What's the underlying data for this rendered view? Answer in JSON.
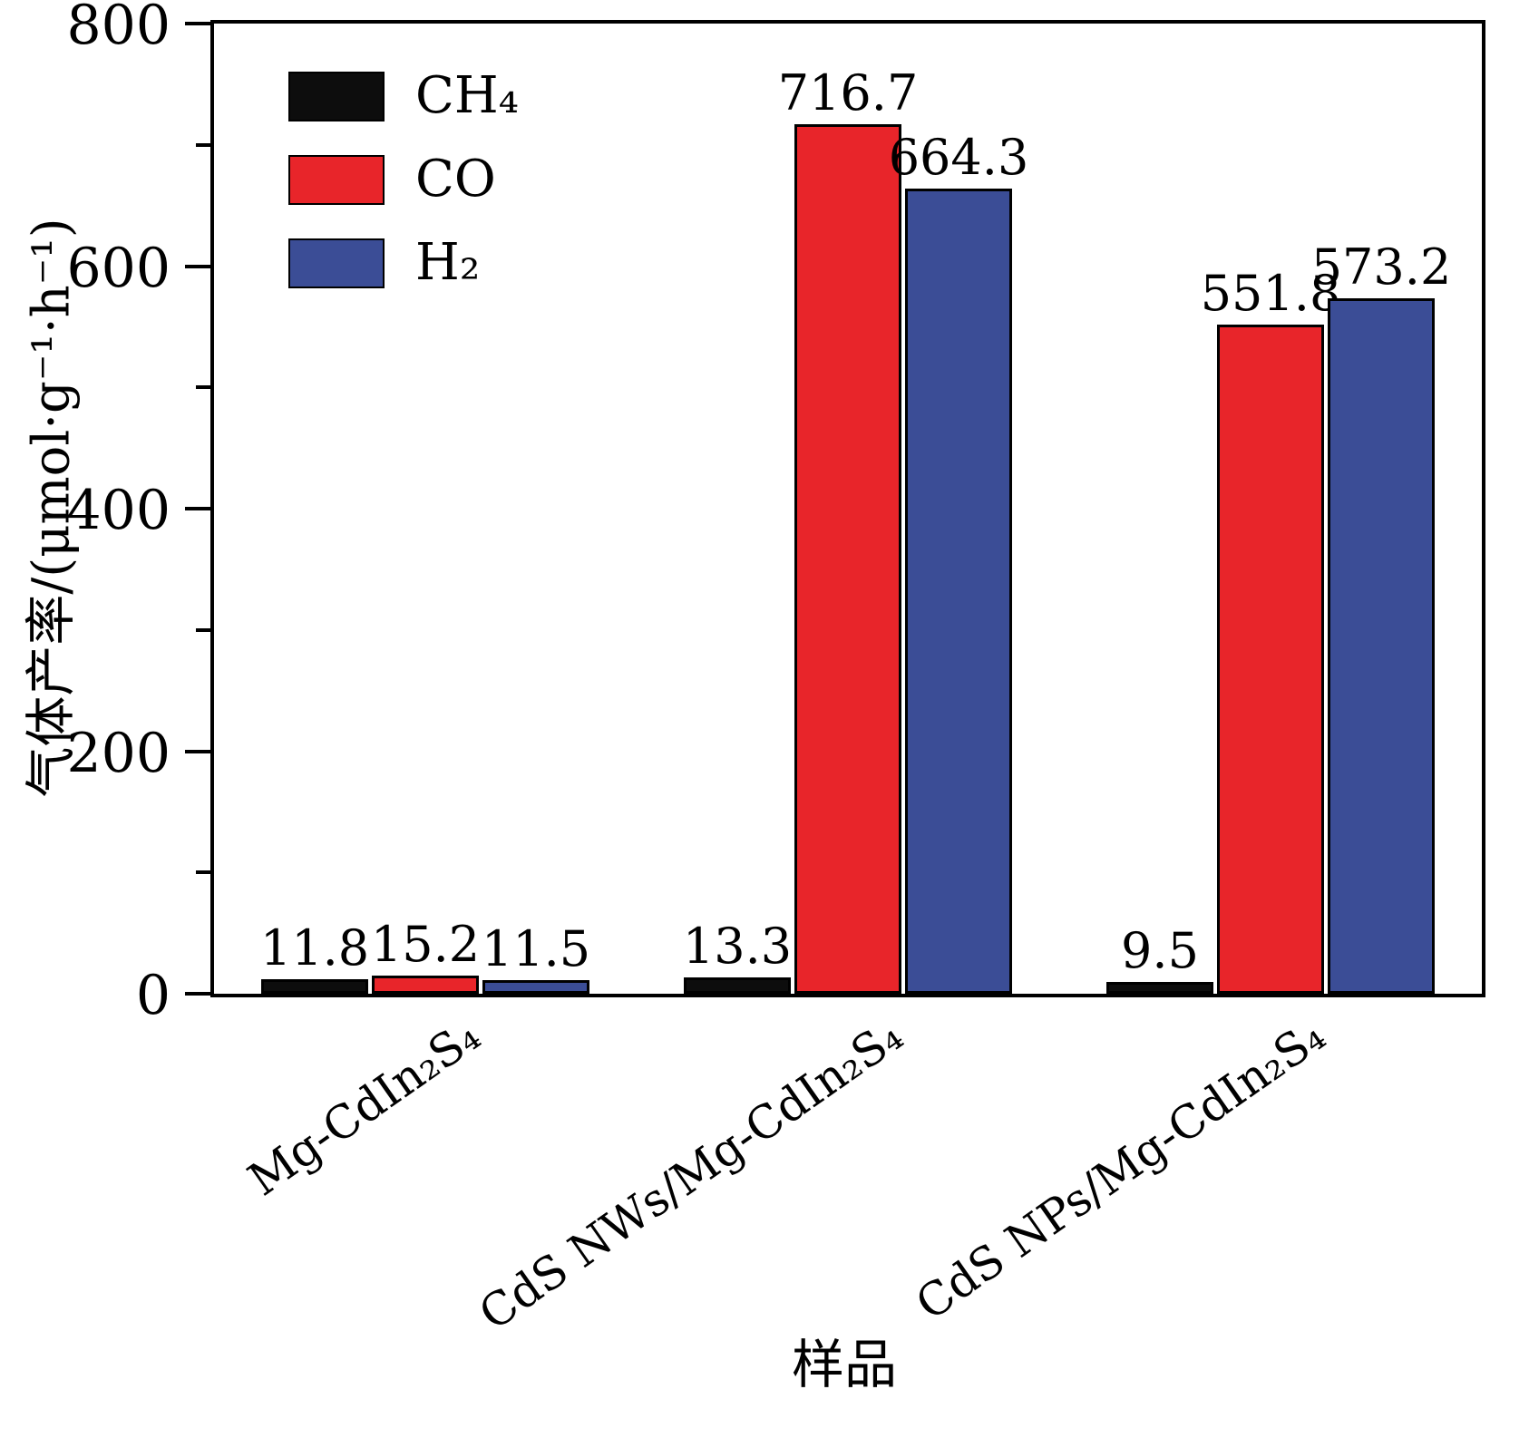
{
  "chart_data": {
    "type": "bar",
    "title": "",
    "xlabel": "样品",
    "ylabel": "气体产率/(μmol·g⁻¹·h⁻¹)",
    "categories": [
      "Mg-CdIn₂S₄",
      "CdS NWs/Mg-CdIn₂S₄",
      "CdS NPs/Mg-CdIn₂S₄"
    ],
    "series": [
      {
        "name": "CH₄",
        "color": "#0d0d0d",
        "values": [
          11.8,
          13.3,
          9.5
        ]
      },
      {
        "name": "CO",
        "color": "#e8252a",
        "values": [
          15.2,
          716.7,
          551.8
        ]
      },
      {
        "name": "H₂",
        "color": "#3b4d96",
        "values": [
          11.5,
          664.3,
          573.2
        ]
      }
    ],
    "ylim": [
      0,
      800
    ],
    "yticks": [
      0,
      200,
      400,
      600,
      800
    ],
    "minor_tick_step": 100,
    "grid": false,
    "legend_position": "top-left",
    "axis_color": "#000000",
    "background_color": "#ffffff"
  }
}
